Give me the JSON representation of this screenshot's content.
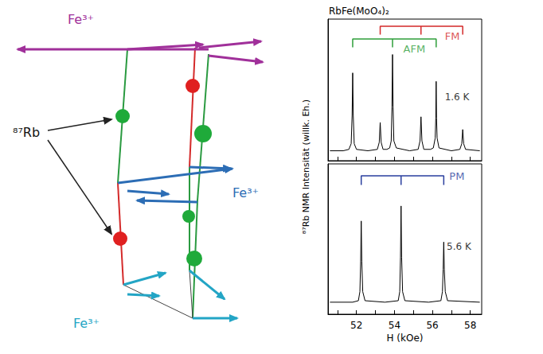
{
  "diagram": {
    "labels": [
      {
        "text": "Fe³⁺",
        "color": "#a0309a"
      },
      {
        "text": "Fe³⁺",
        "color": "#2c6db5"
      },
      {
        "text": "Fe³⁺",
        "color": "#23a5c5"
      }
    ],
    "rb_label": "⁸⁷Rb"
  },
  "chart_data": [
    {
      "type": "line",
      "title": "RbFe(MoO₄)₂",
      "annotation": "1.6 K",
      "ylabel": "⁸⁷Rb NMR Intensität (willk. Eh.)",
      "color": "#000000",
      "x": [
        50.6,
        51.3,
        51.6,
        51.72,
        51.77,
        51.8,
        51.83,
        51.88,
        52.0,
        52.6,
        53.1,
        53.2,
        53.25,
        53.3,
        53.4,
        53.6,
        53.75,
        53.83,
        53.87,
        53.9,
        53.93,
        53.97,
        54.1,
        54.8,
        55.25,
        55.35,
        55.4,
        55.45,
        55.55,
        55.9,
        56.05,
        56.15,
        56.18,
        56.2,
        56.22,
        56.25,
        56.35,
        57.0,
        57.45,
        57.55,
        57.6,
        57.65,
        57.75,
        58.5
      ],
      "values": [
        0.07,
        0.07,
        0.08,
        0.12,
        0.32,
        0.62,
        0.32,
        0.12,
        0.08,
        0.07,
        0.08,
        0.13,
        0.27,
        0.13,
        0.08,
        0.08,
        0.09,
        0.14,
        0.38,
        0.75,
        0.38,
        0.14,
        0.09,
        0.07,
        0.08,
        0.14,
        0.31,
        0.14,
        0.08,
        0.08,
        0.09,
        0.16,
        0.3,
        0.56,
        0.3,
        0.16,
        0.09,
        0.07,
        0.08,
        0.12,
        0.22,
        0.12,
        0.08,
        0.07
      ],
      "xlim": [
        50.5,
        58.6
      ],
      "ylim": [
        0,
        1
      ],
      "xticks": [
        52,
        54,
        56,
        58
      ],
      "tick_labels": false,
      "brackets": [
        {
          "label": "FM",
          "color": "#d42a2a",
          "x": [
            53.25,
            55.4,
            57.6
          ]
        },
        {
          "label": "AFM",
          "color": "#2e9e3a",
          "x": [
            51.8,
            53.9,
            56.2
          ]
        }
      ]
    },
    {
      "type": "line",
      "annotation": "5.6 K",
      "xlabel": "H (kOe)",
      "color": "#000000",
      "x": [
        50.6,
        51.8,
        52.1,
        52.18,
        52.22,
        52.25,
        52.28,
        52.33,
        52.45,
        53.5,
        54.2,
        54.28,
        54.32,
        54.35,
        54.38,
        54.43,
        54.55,
        55.8,
        56.45,
        56.53,
        56.57,
        56.6,
        56.63,
        56.68,
        56.8,
        58.5
      ],
      "values": [
        0.08,
        0.08,
        0.09,
        0.15,
        0.35,
        0.62,
        0.35,
        0.15,
        0.09,
        0.08,
        0.09,
        0.15,
        0.38,
        0.72,
        0.38,
        0.15,
        0.09,
        0.08,
        0.09,
        0.15,
        0.3,
        0.48,
        0.3,
        0.15,
        0.09,
        0.08
      ],
      "xlim": [
        50.5,
        58.6
      ],
      "ylim": [
        0,
        1
      ],
      "xticks": [
        52,
        54,
        56,
        58
      ],
      "tick_labels": "x",
      "brackets": [
        {
          "label": "PM",
          "color": "#2a3f9e",
          "x": [
            52.25,
            54.35,
            56.6
          ]
        }
      ]
    }
  ]
}
